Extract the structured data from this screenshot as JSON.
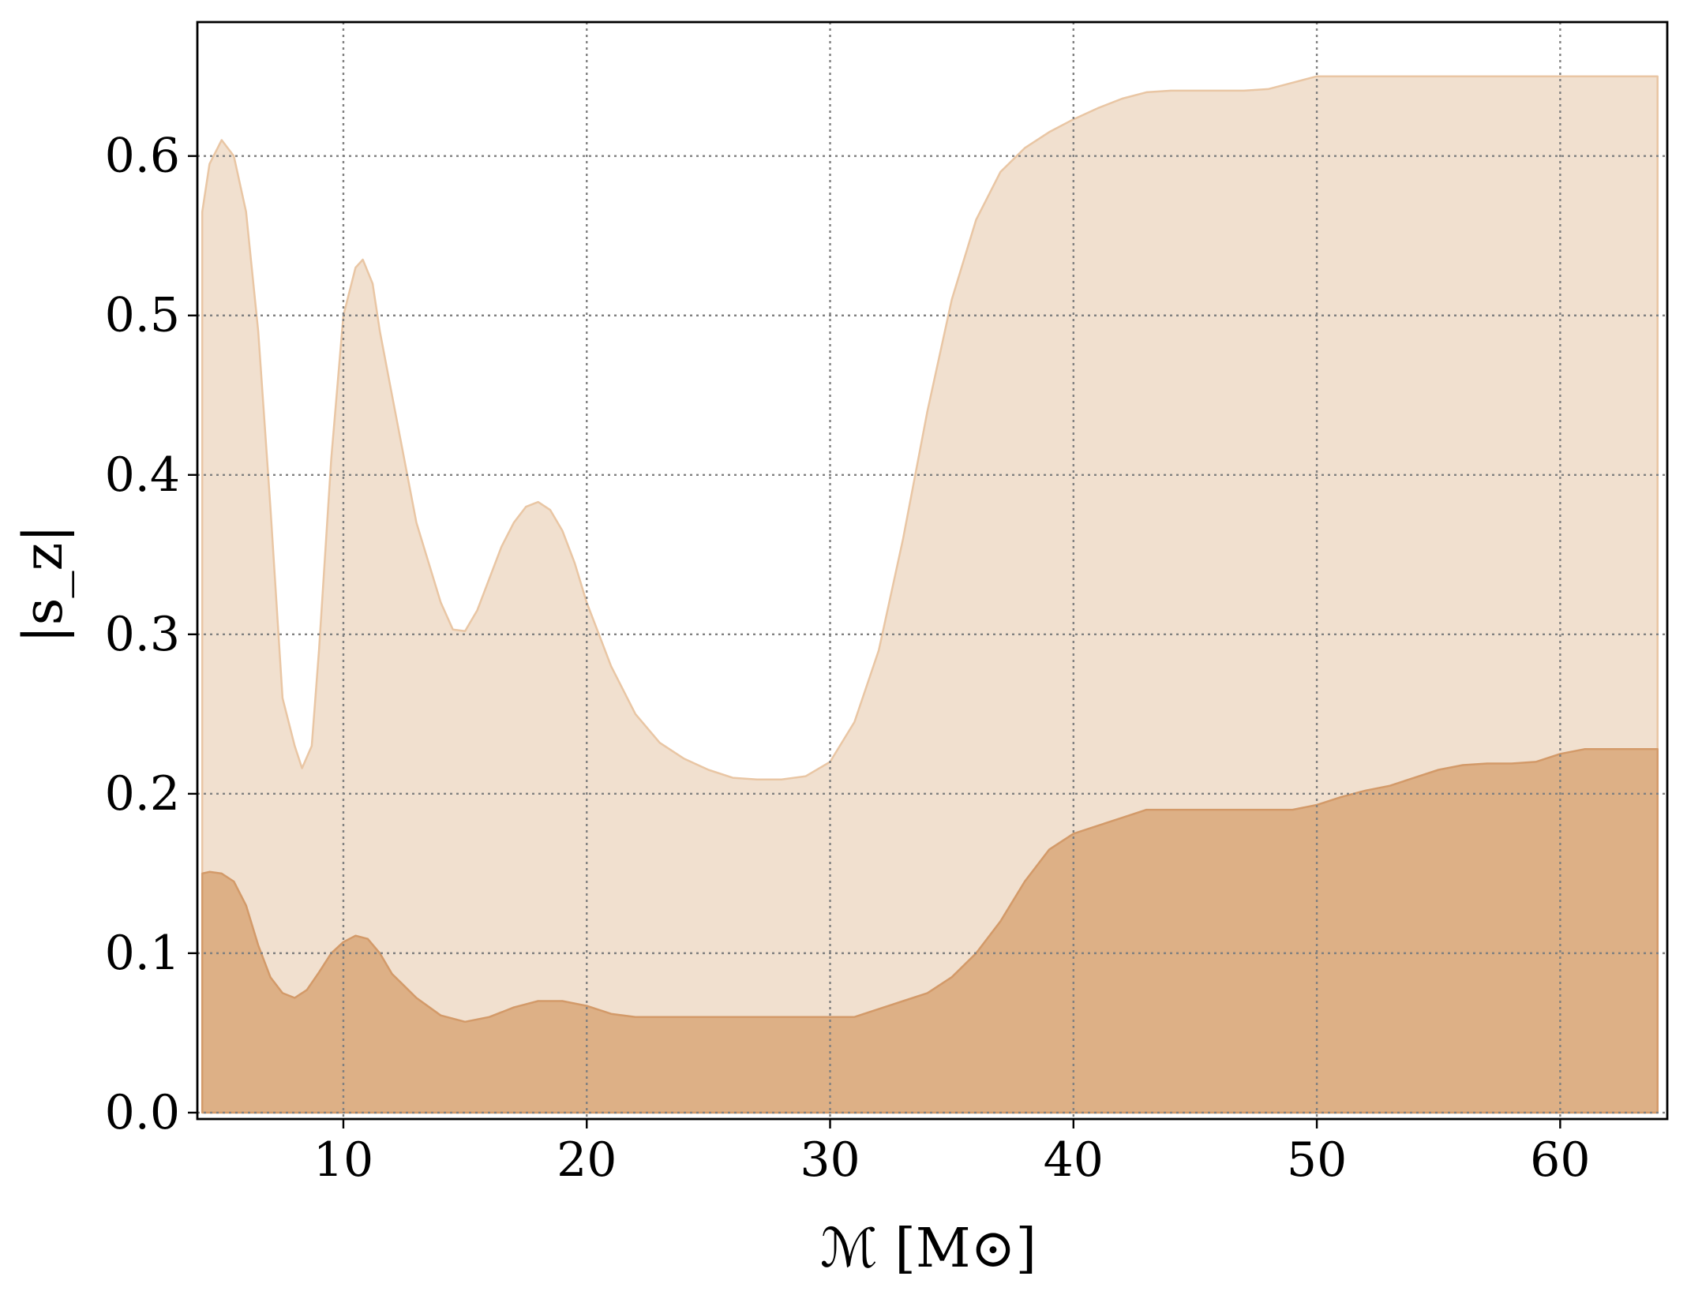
{
  "chart_data": {
    "type": "area",
    "xlabel": "ℳ [M⊙]",
    "ylabel": "|s_z|",
    "xlim": [
      4,
      64.4
    ],
    "ylim": [
      -0.004,
      0.684
    ],
    "grid": true,
    "x_ticks": [
      10,
      20,
      30,
      40,
      50,
      60
    ],
    "x_tick_labels": [
      "10",
      "20",
      "30",
      "40",
      "50",
      "60"
    ],
    "y_ticks": [
      0.0,
      0.1,
      0.2,
      0.3,
      0.4,
      0.5,
      0.6
    ],
    "y_tick_labels": [
      "0.0",
      "0.1",
      "0.2",
      "0.3",
      "0.4",
      "0.5",
      "0.6"
    ],
    "colors": {
      "outer_fill": "#f1e0cf",
      "outer_edge": "#e9c6a4",
      "inner_fill": "#ddb086",
      "inner_edge": "#d39a69"
    },
    "series": [
      {
        "x": [
          4.2,
          4.5,
          5,
          5.5,
          6,
          6.5,
          7,
          7.5,
          8,
          8.3,
          8.7,
          9,
          9.5,
          10,
          10.5,
          10.8,
          11.2,
          11.5,
          12,
          13,
          14,
          14.5,
          15,
          15.5,
          16,
          16.5,
          17,
          17.5,
          18,
          18.5,
          19,
          19.5,
          20,
          20.5,
          21,
          22,
          23,
          24,
          25,
          26,
          27,
          28,
          29,
          30,
          31,
          32,
          33,
          34,
          35,
          36,
          37,
          38,
          39,
          40,
          41,
          42,
          43,
          44,
          45,
          46,
          47,
          48,
          49,
          50,
          51,
          52,
          55,
          60,
          64
        ],
        "y": [
          0.565,
          0.595,
          0.61,
          0.6,
          0.565,
          0.49,
          0.38,
          0.26,
          0.23,
          0.216,
          0.23,
          0.29,
          0.41,
          0.5,
          0.53,
          0.535,
          0.52,
          0.49,
          0.45,
          0.37,
          0.32,
          0.303,
          0.302,
          0.315,
          0.335,
          0.355,
          0.37,
          0.38,
          0.383,
          0.378,
          0.365,
          0.345,
          0.32,
          0.3,
          0.28,
          0.25,
          0.232,
          0.222,
          0.215,
          0.21,
          0.209,
          0.209,
          0.211,
          0.22,
          0.245,
          0.29,
          0.36,
          0.44,
          0.51,
          0.56,
          0.59,
          0.605,
          0.615,
          0.623,
          0.63,
          0.636,
          0.64,
          0.641,
          0.641,
          0.641,
          0.641,
          0.642,
          0.646,
          0.65,
          0.65,
          0.65,
          0.65,
          0.65,
          0.65
        ]
      },
      {
        "x": [
          4.2,
          4.5,
          5,
          5.5,
          6,
          6.5,
          7,
          7.5,
          8,
          8.5,
          9,
          9.5,
          10,
          10.5,
          11,
          11.5,
          12,
          13,
          14,
          15,
          16,
          17,
          18,
          19,
          20,
          21,
          22,
          23,
          25,
          28,
          30,
          31,
          32,
          33,
          34,
          35,
          36,
          37,
          38,
          39,
          40,
          41,
          42,
          43,
          44,
          45,
          46,
          47,
          48,
          49,
          50,
          51,
          52,
          53,
          54,
          55,
          56,
          57,
          58,
          59,
          60,
          61,
          62,
          64
        ],
        "y": [
          0.15,
          0.151,
          0.15,
          0.145,
          0.13,
          0.105,
          0.085,
          0.075,
          0.072,
          0.077,
          0.088,
          0.1,
          0.107,
          0.111,
          0.109,
          0.1,
          0.087,
          0.072,
          0.061,
          0.057,
          0.06,
          0.066,
          0.07,
          0.07,
          0.067,
          0.062,
          0.06,
          0.06,
          0.06,
          0.06,
          0.06,
          0.06,
          0.065,
          0.07,
          0.075,
          0.085,
          0.1,
          0.12,
          0.145,
          0.165,
          0.175,
          0.18,
          0.185,
          0.19,
          0.19,
          0.19,
          0.19,
          0.19,
          0.19,
          0.19,
          0.193,
          0.198,
          0.202,
          0.205,
          0.21,
          0.215,
          0.218,
          0.219,
          0.219,
          0.22,
          0.225,
          0.228,
          0.228,
          0.228
        ]
      }
    ]
  }
}
